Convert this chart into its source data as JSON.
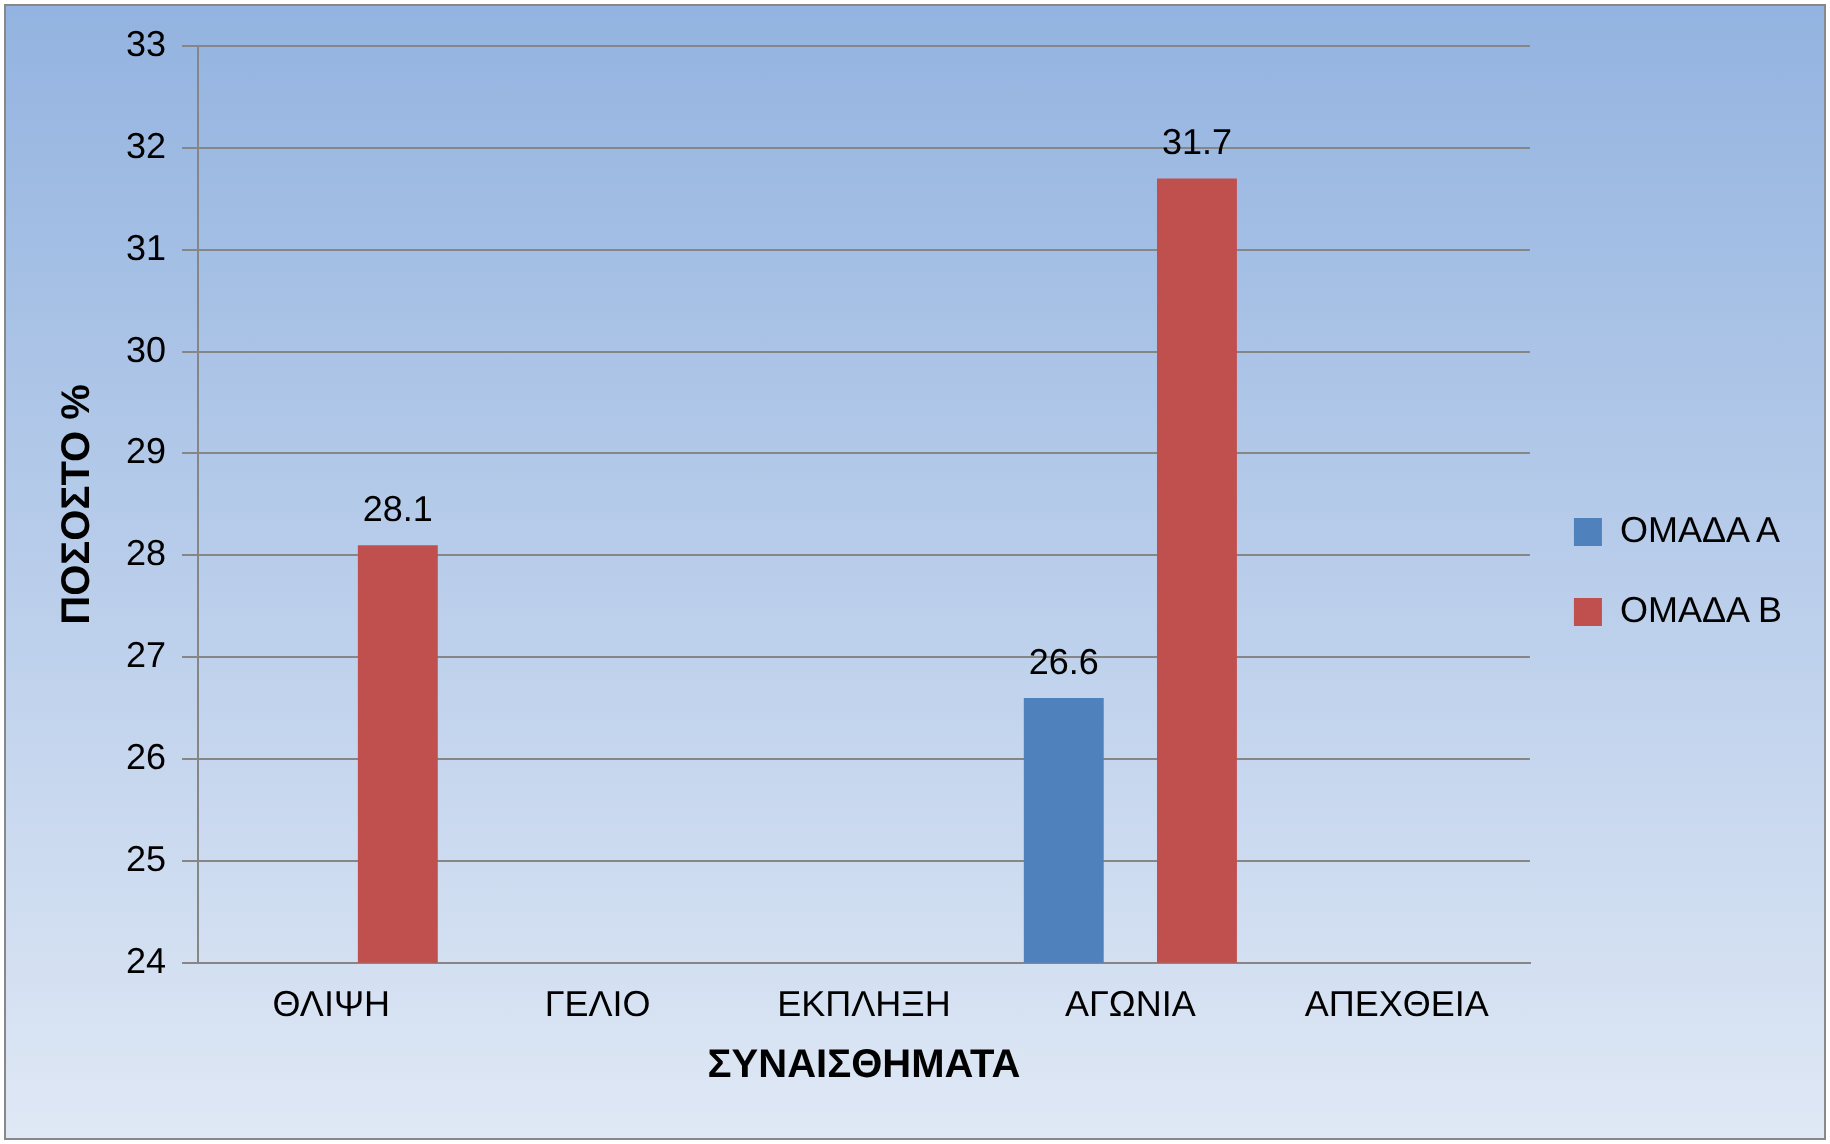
{
  "chart_data": {
    "type": "bar",
    "xlabel": "ΣΥΝΑΙΣΘΗΜΑΤΑ",
    "ylabel": "ΠΟΣΟΣΤΟ %",
    "categories": [
      "ΘΛΙΨΗ",
      "ΓΕΛΙΟ",
      "ΕΚΠΛΗΞΗ",
      "ΑΓΩΝΙΑ",
      "ΑΠΕΧΘΕΙΑ"
    ],
    "series": [
      {
        "name": "ΟΜΑΔΑ Α",
        "color": "#4f81bd",
        "values": [
          null,
          null,
          null,
          26.6,
          null
        ]
      },
      {
        "name": "ΟΜΑΔΑ Β",
        "color": "#c0504d",
        "values": [
          28.1,
          null,
          null,
          31.7,
          null
        ]
      }
    ],
    "ylim": [
      24,
      33
    ],
    "yticks": [
      24,
      25,
      26,
      27,
      28,
      29,
      30,
      31,
      32,
      33
    ],
    "grid": "y",
    "legend": "right",
    "data_labels": true
  }
}
